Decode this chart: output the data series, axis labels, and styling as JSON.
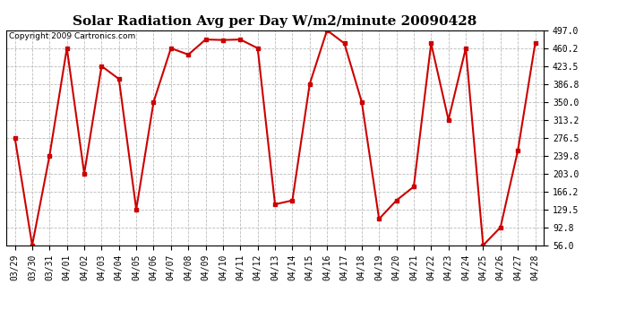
{
  "title": "Solar Radiation Avg per Day W/m2/minute 20090428",
  "copyright": "Copyright 2009 Cartronics.com",
  "dates": [
    "03/29",
    "03/30",
    "03/31",
    "04/01",
    "04/02",
    "04/03",
    "04/04",
    "04/05",
    "04/06",
    "04/07",
    "04/08",
    "04/09",
    "04/10",
    "04/11",
    "04/12",
    "04/13",
    "04/14",
    "04/15",
    "04/16",
    "04/17",
    "04/18",
    "04/19",
    "04/20",
    "04/21",
    "04/22",
    "04/23",
    "04/24",
    "04/25",
    "04/26",
    "04/27",
    "04/28"
  ],
  "values": [
    276.5,
    56.0,
    239.8,
    460.2,
    203.0,
    423.5,
    397.0,
    129.5,
    350.0,
    460.2,
    447.0,
    478.0,
    477.0,
    478.0,
    460.2,
    140.0,
    148.0,
    386.8,
    497.0,
    470.0,
    350.0,
    110.0,
    148.0,
    176.2,
    470.0,
    313.2,
    460.2,
    56.0,
    92.8,
    250.0,
    470.0
  ],
  "line_color": "#cc0000",
  "marker": "s",
  "markersize": 3,
  "linewidth": 1.5,
  "ylim": [
    56.0,
    497.0
  ],
  "yticks": [
    56.0,
    92.8,
    129.5,
    166.2,
    203.0,
    239.8,
    276.5,
    313.2,
    350.0,
    386.8,
    423.5,
    460.2,
    497.0
  ],
  "grid_color": "#bbbbbb",
  "bg_color": "#ffffff",
  "title_fontsize": 11,
  "copyright_fontsize": 6.5,
  "tick_fontsize": 7
}
